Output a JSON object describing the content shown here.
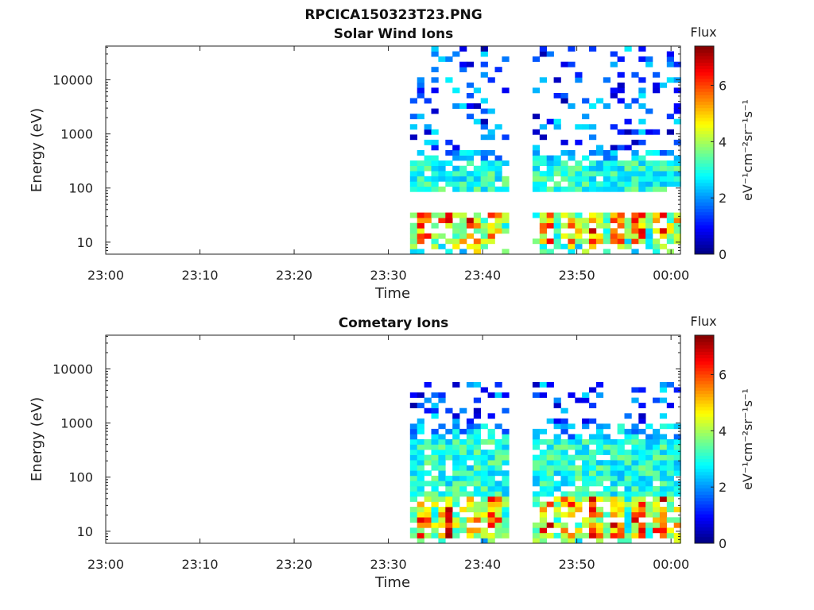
{
  "figure": {
    "title": "RPCICA150323T23.PNG"
  },
  "colors": {
    "background": "#ffffff",
    "axis": "#222222",
    "colormap": "jet"
  },
  "chart_data": [
    {
      "type": "heatmap",
      "title": "Solar Wind Ions",
      "xlabel": "Time",
      "ylabel": "Energy (eV)",
      "x_ticks": [
        "23:00",
        "23:10",
        "23:20",
        "23:30",
        "23:40",
        "23:50",
        "00:00"
      ],
      "x_range_minutes": [
        0,
        61
      ],
      "y_scale": "log",
      "y_range": [
        6,
        42000
      ],
      "y_ticks": [
        10,
        100,
        1000,
        10000
      ],
      "y_tick_labels": [
        "10",
        "100",
        "1000",
        "10000"
      ],
      "colorbar": {
        "title": "Flux",
        "unit": "eV⁻¹cm⁻²sr⁻¹s⁻¹",
        "range": [
          0,
          7.4
        ],
        "ticks": [
          0,
          2,
          4,
          6
        ],
        "tick_labels": [
          "0",
          "2",
          "4",
          "6"
        ]
      },
      "data_blocks_minutes": [
        [
          32.3,
          42.5
        ],
        [
          45.3,
          61.0
        ]
      ],
      "gap_minutes": [
        42.5,
        45.3
      ],
      "dominant_energy_band_eV": [
        80,
        350
      ],
      "peak_flux": 7.2,
      "peak_flux_energy_eV": [
        10,
        35
      ],
      "sparse_high_energy_eV": [
        500,
        40000
      ]
    },
    {
      "type": "heatmap",
      "title": "Cometary Ions",
      "xlabel": "Time",
      "ylabel": "Energy (eV)",
      "x_ticks": [
        "23:00",
        "23:10",
        "23:20",
        "23:30",
        "23:40",
        "23:50",
        "00:00"
      ],
      "x_range_minutes": [
        0,
        61
      ],
      "y_scale": "log",
      "y_range": [
        6,
        42000
      ],
      "y_ticks": [
        10,
        100,
        1000,
        10000
      ],
      "y_tick_labels": [
        "10",
        "100",
        "1000",
        "10000"
      ],
      "colorbar": {
        "title": "Flux",
        "unit": "eV⁻¹cm⁻²sr⁻¹s⁻¹",
        "range": [
          0,
          7.4
        ],
        "ticks": [
          0,
          2,
          4,
          6
        ],
        "tick_labels": [
          "0",
          "2",
          "4",
          "6"
        ]
      },
      "data_blocks_minutes": [
        [
          32.3,
          42.5
        ],
        [
          45.3,
          61.0
        ]
      ],
      "gap_minutes": [
        42.5,
        45.3
      ],
      "dominant_energy_band_eV": [
        20,
        500
      ],
      "peak_flux": 7.3,
      "peak_flux_energy_eV": [
        8,
        40
      ],
      "sparse_high_energy_eV": [
        900,
        6000
      ]
    }
  ]
}
